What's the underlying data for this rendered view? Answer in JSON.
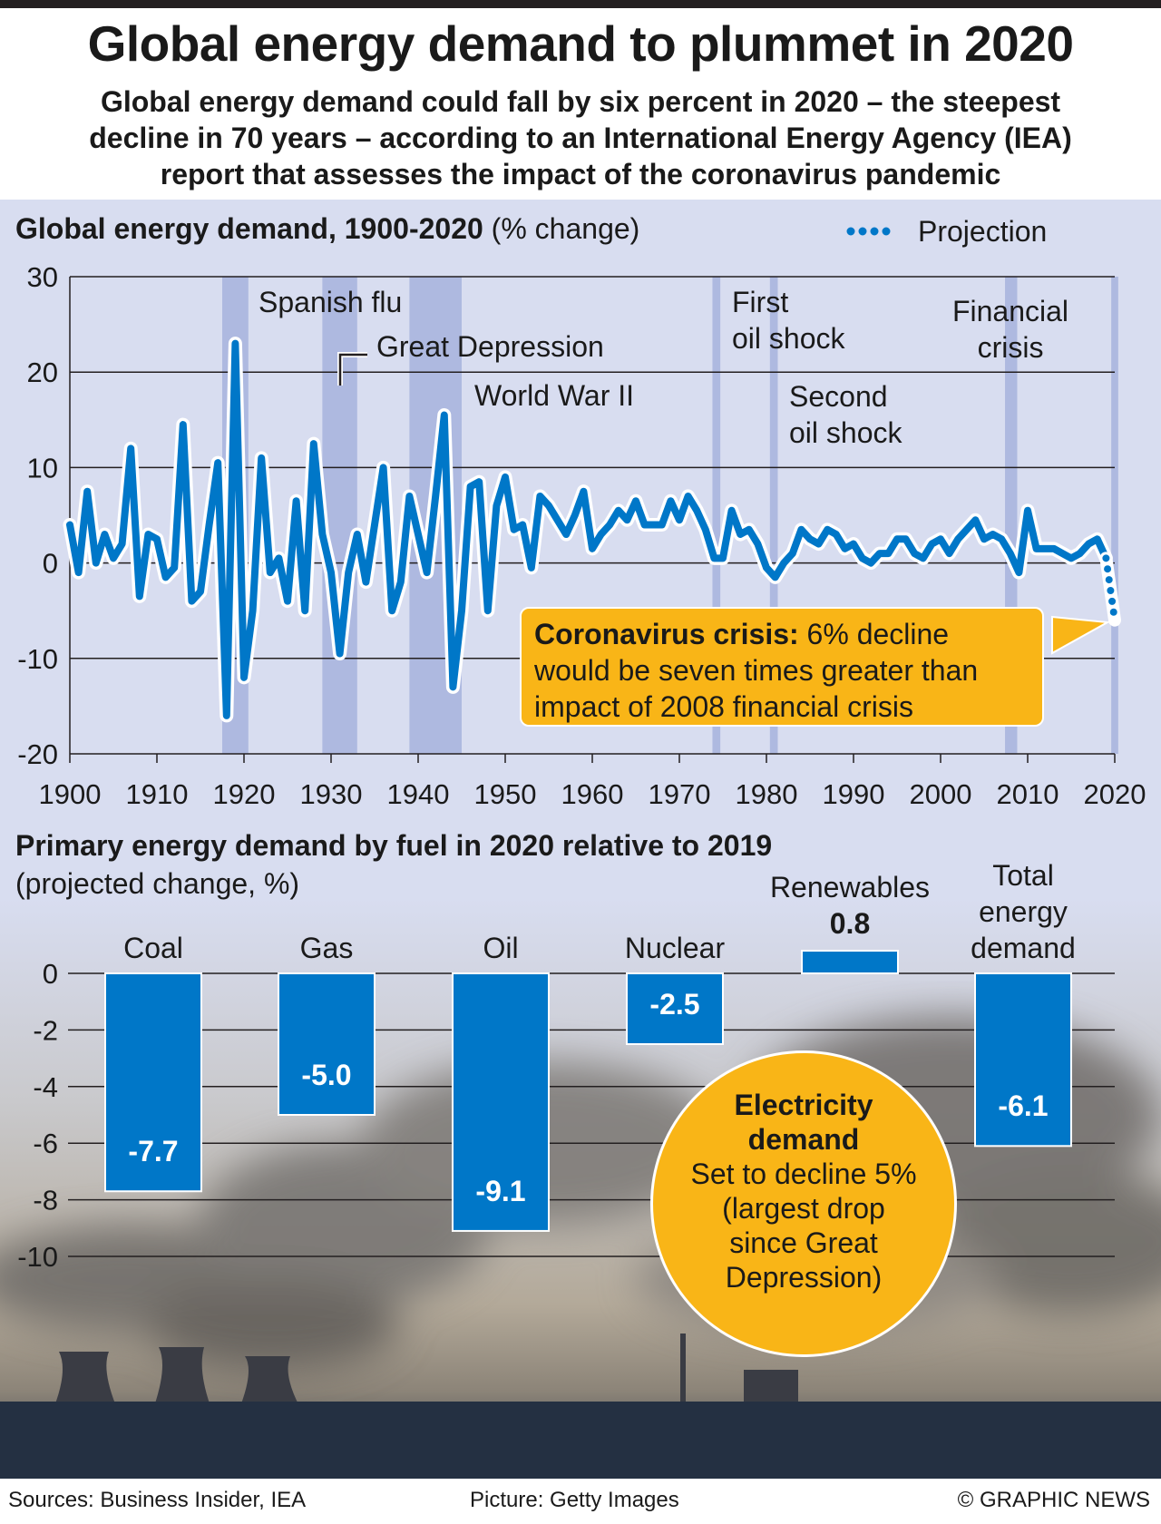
{
  "header": {
    "title": "Global energy demand to plummet in 2020",
    "subtitle_lines": [
      "Global energy demand could fall by six percent in 2020 – the steepest",
      "decline in 70 years – according to an International Energy Agency (IEA)",
      "report that assesses the impact of the coronavirus pandemic"
    ]
  },
  "colors": {
    "line": "#0077c8",
    "band": "#aeb9e0",
    "panel": "#d8ddf0",
    "highlight": "#f9b517",
    "bar": "#0077c8"
  },
  "chart_data": [
    {
      "type": "line",
      "title": "Global energy demand, 1900-2020",
      "title_unit": "(% change)",
      "legend": {
        "projection": "Projection",
        "placement": "top-right"
      },
      "xlim": [
        1900,
        2020
      ],
      "ylim": [
        -20,
        30
      ],
      "y_ticks": [
        "30",
        "20",
        "10",
        "0",
        "-10",
        "-20"
      ],
      "x_ticks": [
        "1900",
        "1910",
        "1920",
        "1930",
        "1940",
        "1950",
        "1960",
        "1970",
        "1980",
        "1990",
        "2000",
        "2010",
        "2020"
      ],
      "grid": true,
      "start_year": 1900,
      "values": [
        4,
        -1,
        7.5,
        0,
        3,
        0.5,
        2,
        12,
        -3.5,
        3,
        2.5,
        -1.5,
        -0.5,
        14.5,
        -4,
        -3,
        4,
        10.5,
        -16,
        23,
        -12,
        -5,
        11,
        -1,
        0.5,
        -4,
        6.5,
        -5,
        12.5,
        3,
        -1,
        -9.5,
        -1,
        3,
        -2,
        4,
        10,
        -5,
        -2,
        7,
        3,
        -1,
        7,
        15.5,
        -13,
        -5,
        8,
        8.5,
        -5,
        6,
        9,
        3.5,
        4,
        -0.5,
        7,
        6,
        4.5,
        3,
        5,
        7.5,
        1.5,
        3,
        4,
        5.5,
        4.5,
        6.5,
        4,
        4,
        4,
        6.5,
        4.5,
        7,
        5.5,
        3.5,
        0.5,
        0.5,
        5.5,
        3,
        3.5,
        2,
        -0.5,
        -1.5,
        0,
        1,
        3.5,
        2.5,
        2,
        3.5,
        3,
        1.5,
        2,
        0.5,
        0,
        1,
        1,
        2.5,
        2.5,
        1,
        0.5,
        2,
        2.5,
        1,
        2.5,
        3.5,
        4.5,
        2.5,
        3,
        2.5,
        1,
        -1,
        5.5,
        1.5,
        1.5,
        1.5,
        1,
        0.5,
        1,
        2,
        2.5,
        0.5
      ],
      "projection": {
        "from_year": 2019,
        "to_year": 2020,
        "values": [
          0.5,
          -6
        ]
      },
      "bands": [
        {
          "label": "Spanish flu",
          "years": [
            1917.5,
            1920.5
          ]
        },
        {
          "label": "Great Depression",
          "years": [
            1929,
            1933
          ]
        },
        {
          "label": "World War II",
          "years": [
            1939,
            1945
          ]
        },
        {
          "label": "First oil shock",
          "years": [
            1973.8,
            1974.7
          ]
        },
        {
          "label": "Second oil shock",
          "years": [
            1980.4,
            1981.3
          ]
        },
        {
          "label": "Financial crisis",
          "years": [
            2007.4,
            2008.8
          ]
        },
        {
          "label": "",
          "years": [
            2019.6,
            2020.4
          ]
        }
      ],
      "annotations": {
        "spanish_flu": "Spanish flu",
        "great_depression": "Great Depression",
        "wwii": "World War II",
        "first_oil": [
          "First",
          "oil shock"
        ],
        "second_oil": [
          "Second",
          "oil shock"
        ],
        "financial": [
          "Financial",
          "crisis"
        ],
        "coronavirus_bold": "Coronavirus crisis:",
        "coronavirus_text": " 6% decline",
        "coronavirus_lines": [
          "would be seven times greater than",
          "impact of 2008 financial crisis"
        ]
      }
    },
    {
      "type": "bar",
      "title": "Primary energy demand by fuel in 2020 relative to 2019",
      "subtitle": "(projected change, %)",
      "categories": [
        "Coal",
        "Gas",
        "Oil",
        "Nuclear",
        "Renewables",
        "Total energy demand"
      ],
      "category_lines": [
        [
          "Coal"
        ],
        [
          "Gas"
        ],
        [
          "Oil"
        ],
        [
          "Nuclear"
        ],
        [
          "Renewables"
        ],
        [
          "Total",
          "energy",
          "demand"
        ]
      ],
      "values": [
        -7.7,
        -5.0,
        -9.1,
        -2.5,
        0.8,
        -6.1
      ],
      "value_labels": [
        "-7.7",
        "-5.0",
        "-9.1",
        "-2.5",
        "0.8",
        "-6.1"
      ],
      "ylim": [
        -10,
        0.8
      ],
      "y_ticks": [
        "0",
        "-2",
        "-4",
        "-6",
        "-8",
        "-10"
      ],
      "grid": true
    }
  ],
  "electricity": {
    "title_lines": [
      "Electricity",
      "demand"
    ],
    "text_lines": [
      "Set to decline 5%",
      "(largest drop",
      "since Great",
      "Depression)"
    ]
  },
  "footer": {
    "sources": "Sources: Business Insider, IEA",
    "picture": "Picture: Getty Images",
    "credit": "© GRAPHIC NEWS"
  }
}
